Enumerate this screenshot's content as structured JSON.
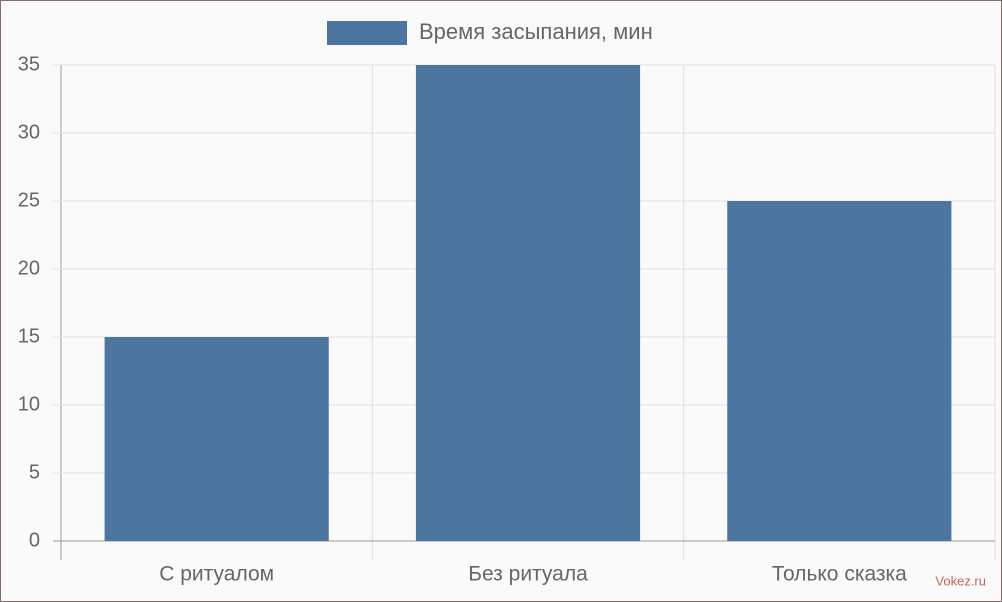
{
  "chart_data": {
    "type": "bar",
    "categories": [
      "С ритуалом",
      "Без ритуала",
      "Только сказка"
    ],
    "series": [
      {
        "name": "Время засыпания, мин",
        "color": "#4c759f",
        "values": [
          15,
          35,
          25
        ]
      }
    ],
    "ylim": [
      0,
      35
    ],
    "yticks": [
      0,
      5,
      10,
      15,
      20,
      25,
      30,
      35
    ],
    "grid": true,
    "legend": "top"
  },
  "watermark": "Vokez.ru"
}
